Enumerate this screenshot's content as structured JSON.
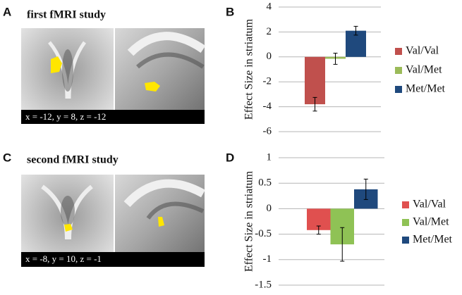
{
  "figure": {
    "panel_labels": [
      "A",
      "B",
      "C",
      "D"
    ],
    "study_titles": [
      "first fMRI study",
      "second fMRI study"
    ],
    "coordinates": [
      "x = -12, y = 8, z = -12",
      "x = -8, y = 10, z = -1"
    ]
  },
  "chart_data": [
    {
      "type": "bar",
      "ylabel": "Effect Size in striatum",
      "categories": [
        "Val/Val",
        "Val/Met",
        "Met/Met"
      ],
      "values": [
        -3.8,
        -0.15,
        2.1
      ],
      "errors": [
        0.55,
        0.45,
        0.35
      ],
      "colors": [
        "#c0504d",
        "#9bbb59",
        "#1f497d"
      ],
      "ylim": [
        -6,
        4
      ],
      "yticks": [
        -6,
        -4,
        -2,
        0,
        2,
        4
      ],
      "grid": true,
      "legend": "right"
    },
    {
      "type": "bar",
      "ylabel": "Effect Size in striatum",
      "categories": [
        "Val/Val",
        "Val/Met",
        "Met/Met"
      ],
      "values": [
        -0.42,
        -0.7,
        0.38
      ],
      "errors": [
        0.08,
        0.33,
        0.2
      ],
      "colors": [
        "#e0504f",
        "#8fc255",
        "#1f497d"
      ],
      "ylim": [
        -1.5,
        1
      ],
      "yticks": [
        -1.5,
        -1,
        -0.5,
        0,
        0.5,
        1
      ],
      "grid": true,
      "legend": "right"
    }
  ]
}
